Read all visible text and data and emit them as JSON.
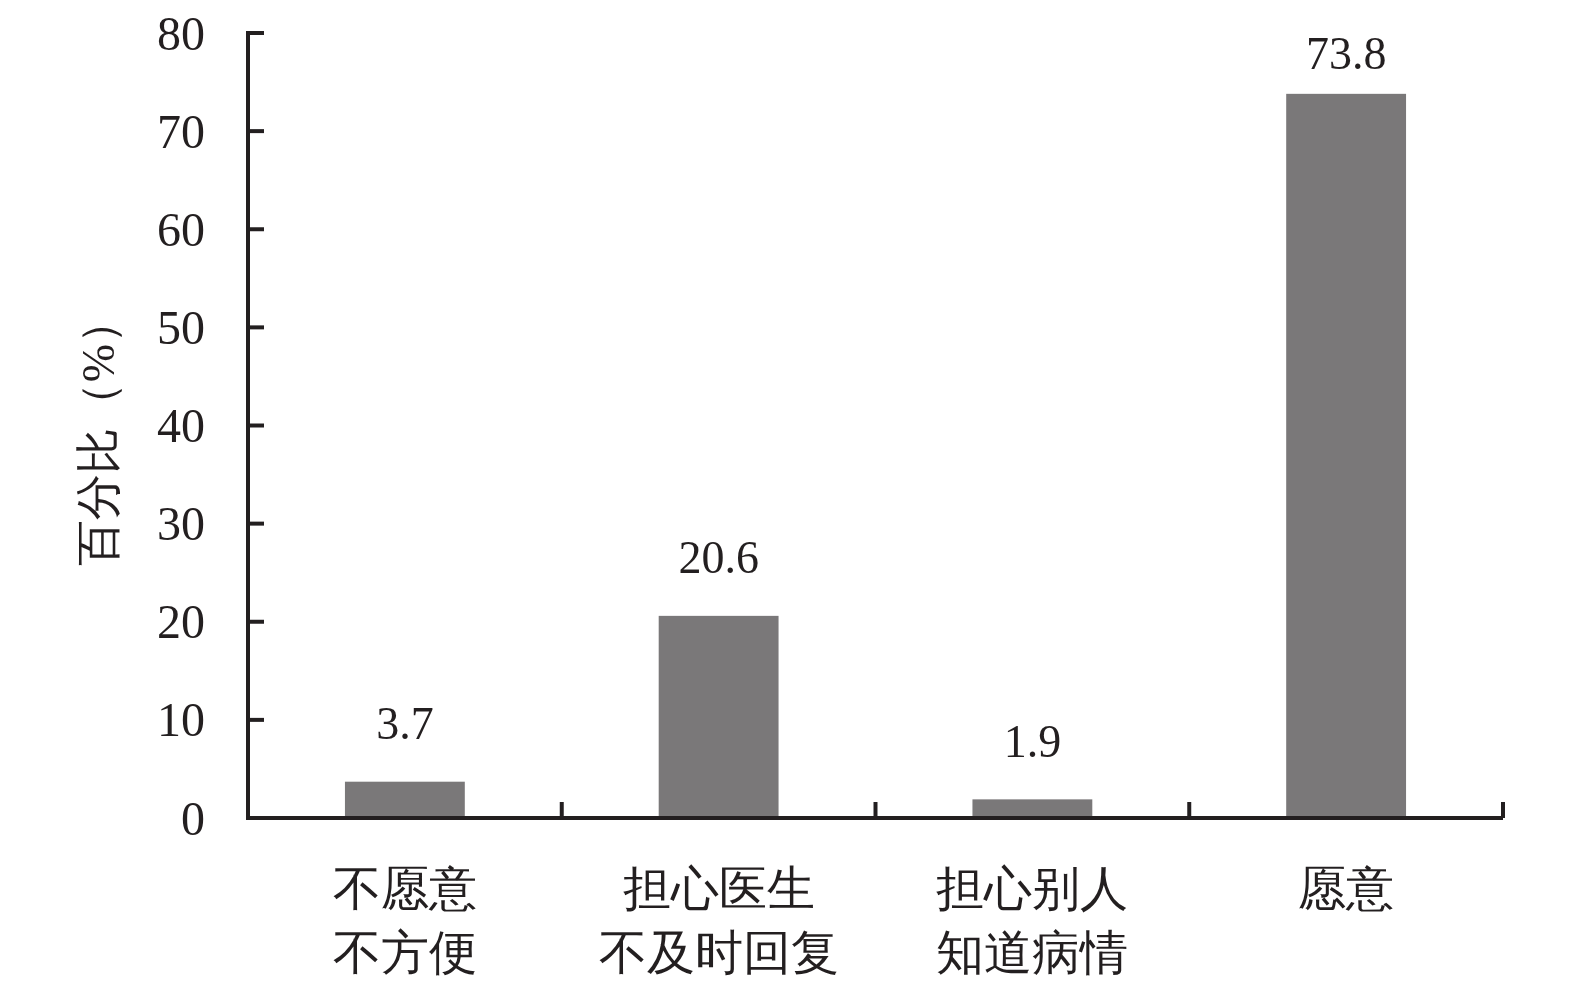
{
  "chart_data": {
    "type": "bar",
    "ylabel": "百分比（%）",
    "categories": [
      "不愿意不方便",
      "担心医生不及时回复",
      "担心别人知道病情",
      "愿意"
    ],
    "values": [
      3.7,
      20.6,
      1.9,
      73.8
    ],
    "color": "#7a7879",
    "ylim": [
      0,
      80
    ],
    "yticks": [
      0,
      10,
      20,
      30,
      40,
      50,
      60,
      70,
      80
    ],
    "data_labels": true
  }
}
